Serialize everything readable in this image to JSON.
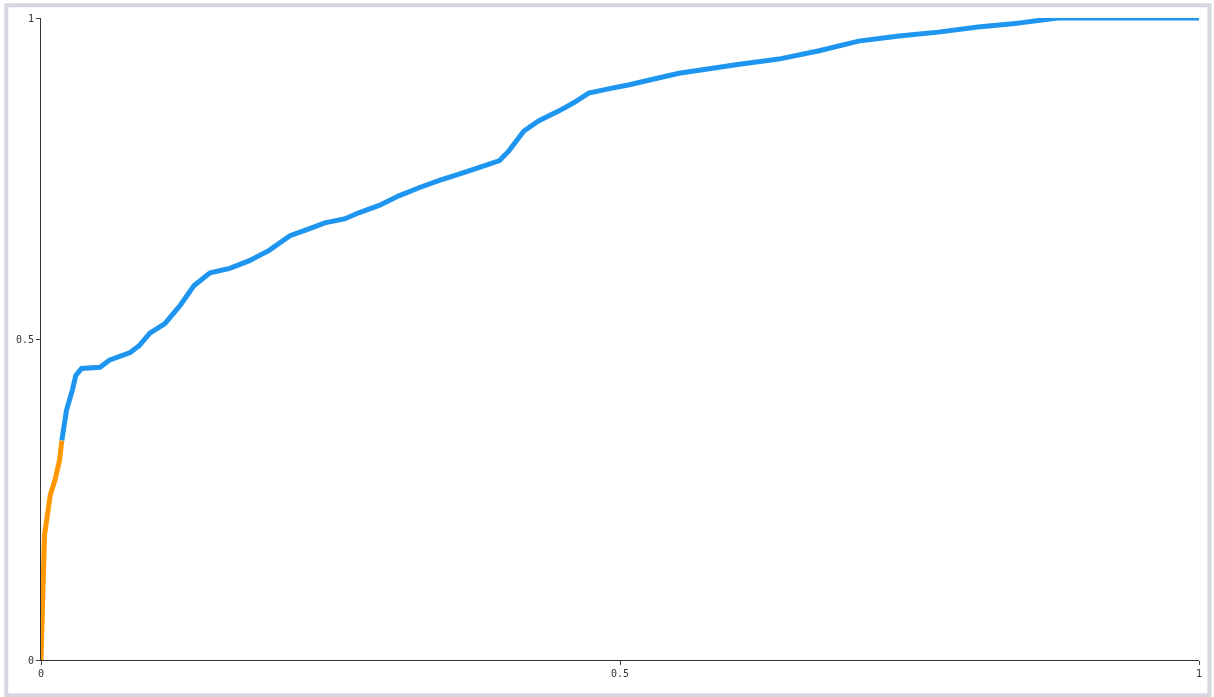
{
  "chart_data": {
    "type": "line",
    "xlim": [
      0,
      1
    ],
    "ylim": [
      0,
      1
    ],
    "xticks": [
      0,
      0.5,
      1
    ],
    "yticks": [
      0,
      0.5,
      1
    ],
    "marker": "none",
    "line_style": "solid",
    "series": [
      {
        "color": "#ff9800",
        "x": [
          0,
          0.003,
          0.008,
          0.012,
          0.016,
          0.018
        ],
        "values": [
          0,
          0.194,
          0.257,
          0.28,
          0.311,
          0.342
        ]
      },
      {
        "color": "#1e96f0",
        "x": [
          0.018,
          0.022,
          0.027,
          0.03,
          0.035,
          0.051,
          0.059,
          0.077,
          0.085,
          0.094,
          0.107,
          0.12,
          0.132,
          0.146,
          0.163,
          0.18,
          0.197,
          0.215,
          0.232,
          0.245,
          0.262,
          0.275,
          0.292,
          0.309,
          0.327,
          0.344,
          0.361,
          0.378,
          0.396,
          0.404,
          0.417,
          0.43,
          0.447,
          0.46,
          0.473,
          0.491,
          0.508,
          0.534,
          0.551,
          0.577,
          0.603,
          0.637,
          0.672,
          0.706,
          0.741,
          0.775,
          0.809,
          0.844,
          0.878,
          1
        ],
        "values": [
          0.342,
          0.389,
          0.42,
          0.443,
          0.454,
          0.456,
          0.467,
          0.479,
          0.49,
          0.509,
          0.524,
          0.552,
          0.583,
          0.603,
          0.61,
          0.622,
          0.638,
          0.661,
          0.672,
          0.681,
          0.687,
          0.697,
          0.708,
          0.723,
          0.736,
          0.747,
          0.757,
          0.767,
          0.778,
          0.793,
          0.824,
          0.84,
          0.855,
          0.868,
          0.883,
          0.89,
          0.896,
          0.907,
          0.914,
          0.921,
          0.928,
          0.936,
          0.949,
          0.964,
          0.972,
          0.978,
          0.986,
          0.992,
          1.0,
          1.0
        ]
      }
    ]
  }
}
